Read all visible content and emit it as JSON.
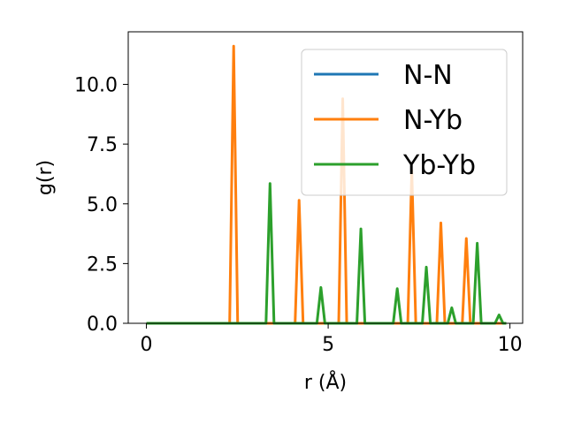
{
  "chart_data": {
    "type": "line",
    "xlabel": "r (Å)",
    "ylabel": "g(r)",
    "xlim": [
      -0.5,
      10.35
    ],
    "ylim": [
      0,
      12.2
    ],
    "x_ticks": [
      0,
      5,
      10
    ],
    "x_tick_labels": [
      "0",
      "5",
      "10"
    ],
    "y_ticks": [
      0,
      2.5,
      5.0,
      7.5,
      10.0
    ],
    "y_tick_labels": [
      "0.0",
      "2.5",
      "5.0",
      "7.5",
      "10.0"
    ],
    "grid": false,
    "legend_position": "top-right",
    "x_range": [
      0,
      9.9
    ],
    "peak_width": 0.22,
    "series": [
      {
        "name": "N-N",
        "color": "#1f77b4",
        "peaks": []
      },
      {
        "name": "N-Yb",
        "color": "#ff7f0e",
        "peaks": [
          {
            "x": 2.4,
            "y": 11.6
          },
          {
            "x": 4.2,
            "y": 5.15
          },
          {
            "x": 5.4,
            "y": 9.4
          },
          {
            "x": 7.3,
            "y": 6.4
          },
          {
            "x": 8.1,
            "y": 4.2
          },
          {
            "x": 8.8,
            "y": 3.55
          }
        ]
      },
      {
        "name": "Yb-Yb",
        "color": "#2ca02c",
        "peaks": [
          {
            "x": 3.4,
            "y": 5.85
          },
          {
            "x": 4.8,
            "y": 1.5
          },
          {
            "x": 5.9,
            "y": 3.95
          },
          {
            "x": 6.9,
            "y": 1.45
          },
          {
            "x": 7.7,
            "y": 2.35
          },
          {
            "x": 8.4,
            "y": 0.65
          },
          {
            "x": 9.1,
            "y": 3.35
          },
          {
            "x": 9.7,
            "y": 0.35
          }
        ]
      }
    ]
  }
}
